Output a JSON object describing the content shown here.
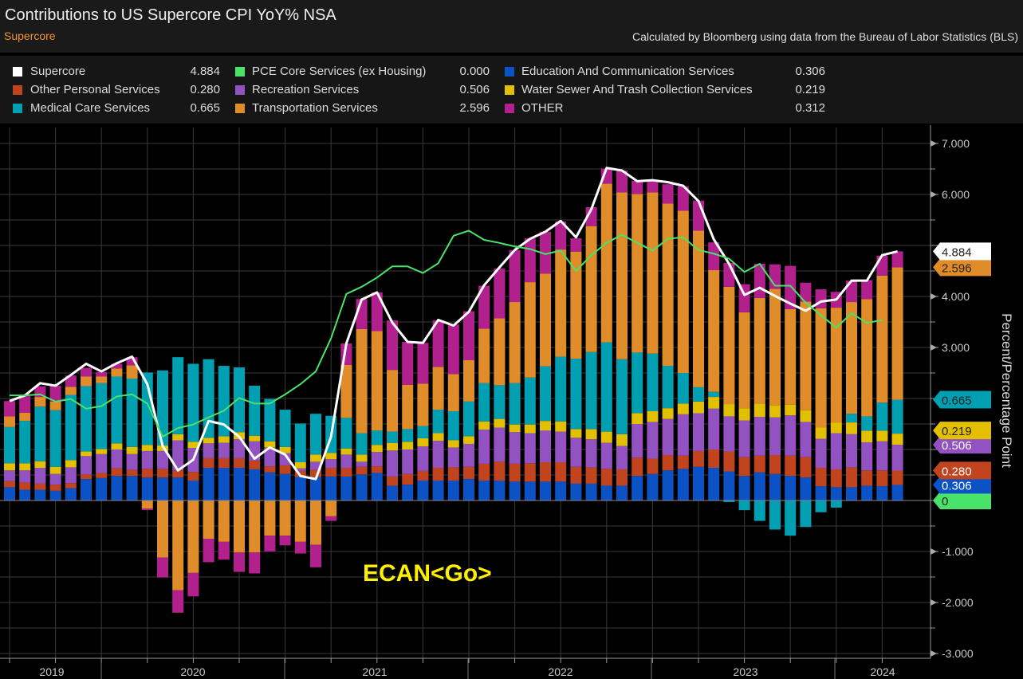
{
  "header": {
    "title": "Contributions to US Supercore CPI YoY% NSA",
    "subtitle": "Supercore",
    "source": "Calculated by Bloomberg using data from the Bureau of Labor Statistics (BLS)"
  },
  "legend": [
    {
      "name": "Supercore",
      "value": "4.884",
      "color": "#ffffff"
    },
    {
      "name": "Other Personal Services",
      "value": "0.280",
      "color": "#c2441e"
    },
    {
      "name": "Medical Care Services",
      "value": "0.665",
      "color": "#00a0b2"
    },
    {
      "name": "PCE Core Services (ex Housing)",
      "value": "0.000",
      "color": "#4ae36a"
    },
    {
      "name": "Recreation Services",
      "value": "0.506",
      "color": "#9352c2"
    },
    {
      "name": "Transportation Services",
      "value": "2.596",
      "color": "#e08c28"
    },
    {
      "name": "Education And Communication Services",
      "value": "0.306",
      "color": "#0a52c6"
    },
    {
      "name": "Water Sewer And Trash Collection Services",
      "value": "0.219",
      "color": "#e2c000"
    },
    {
      "name": "OTHER",
      "value": "0.312",
      "color": "#b2208e"
    }
  ],
  "watermark": "ECAN<Go>",
  "chart_data": {
    "type": "bar",
    "title": "Contributions to US Supercore CPI YoY% NSA",
    "ylabel": "Percent/Percentage Point",
    "ylim": [
      -3,
      7
    ],
    "yticks": [
      "7.000",
      "6.000",
      "4.000",
      "3.000",
      "-1.000",
      "-2.000",
      "-3.000"
    ],
    "xticks": [
      "2019",
      "2020",
      "2021",
      "2022",
      "2023",
      "2024"
    ],
    "grid": true,
    "stacked": true,
    "series": [
      {
        "name": "Education And Communication Services",
        "color": "#0a52c6",
        "tag": "0.306",
        "values": [
          0.26,
          0.21,
          0.21,
          0.19,
          0.24,
          0.42,
          0.44,
          0.48,
          0.48,
          0.45,
          0.45,
          0.45,
          0.39,
          0.64,
          0.64,
          0.64,
          0.61,
          0.55,
          0.52,
          0.46,
          0.46,
          0.47,
          0.47,
          0.51,
          0.54,
          0.29,
          0.31,
          0.39,
          0.39,
          0.39,
          0.42,
          0.39,
          0.39,
          0.37,
          0.37,
          0.37,
          0.37,
          0.33,
          0.33,
          0.29,
          0.29,
          0.48,
          0.52,
          0.59,
          0.62,
          0.66,
          0.64,
          0.57,
          0.48,
          0.55,
          0.52,
          0.48,
          0.45,
          0.28,
          0.26,
          0.26,
          0.29,
          0.28,
          0.306
        ]
      },
      {
        "name": "Other Personal Services",
        "color": "#c2441e",
        "tag": "0.280",
        "values": [
          0.12,
          0.14,
          0.12,
          0.12,
          0.1,
          0.09,
          0.1,
          0.15,
          0.12,
          0.17,
          0.17,
          0.14,
          0.17,
          0.19,
          0.19,
          0.19,
          0.17,
          0.12,
          0.17,
          0.12,
          0.14,
          0.17,
          0.17,
          0.15,
          0.13,
          0.18,
          0.21,
          0.19,
          0.25,
          0.26,
          0.24,
          0.33,
          0.37,
          0.35,
          0.36,
          0.38,
          0.38,
          0.33,
          0.32,
          0.33,
          0.32,
          0.36,
          0.3,
          0.3,
          0.26,
          0.31,
          0.36,
          0.39,
          0.37,
          0.33,
          0.37,
          0.4,
          0.4,
          0.36,
          0.35,
          0.39,
          0.3,
          0.31,
          0.28
        ]
      },
      {
        "name": "Recreation Services",
        "color": "#9352c2",
        "tag": "0.506",
        "values": [
          0.21,
          0.24,
          0.31,
          0.21,
          0.31,
          0.36,
          0.37,
          0.37,
          0.31,
          0.35,
          0.35,
          0.59,
          0.47,
          0.29,
          0.3,
          0.37,
          0.38,
          0.37,
          0.24,
          0.05,
          0.16,
          0.17,
          0.26,
          0.1,
          0.28,
          0.51,
          0.48,
          0.48,
          0.53,
          0.39,
          0.45,
          0.67,
          0.67,
          0.62,
          0.59,
          0.62,
          0.6,
          0.57,
          0.55,
          0.51,
          0.46,
          0.66,
          0.72,
          0.71,
          0.81,
          0.74,
          0.8,
          0.69,
          0.72,
          0.76,
          0.74,
          0.79,
          0.69,
          0.57,
          0.71,
          0.65,
          0.55,
          0.57,
          0.506
        ]
      },
      {
        "name": "Water Sewer And Trash Collection Services",
        "color": "#e2c000",
        "tag": "0.219",
        "values": [
          0.14,
          0.14,
          0.13,
          0.14,
          0.14,
          0.09,
          0.1,
          0.12,
          0.14,
          0.12,
          0.11,
          0.12,
          0.12,
          0.11,
          0.13,
          0.14,
          0.11,
          0.12,
          0.12,
          0.12,
          0.14,
          0.12,
          0.12,
          0.14,
          0.14,
          0.15,
          0.15,
          0.16,
          0.15,
          0.14,
          0.15,
          0.16,
          0.17,
          0.15,
          0.17,
          0.19,
          0.2,
          0.17,
          0.2,
          0.22,
          0.23,
          0.21,
          0.21,
          0.21,
          0.21,
          0.23,
          0.23,
          0.24,
          0.24,
          0.26,
          0.24,
          0.21,
          0.23,
          0.22,
          0.21,
          0.23,
          0.23,
          0.21,
          0.219
        ]
      },
      {
        "name": "Medical Care Services",
        "color": "#00a0b2",
        "tag": "0.665",
        "values": [
          0.71,
          0.83,
          1.07,
          1.11,
          1.28,
          1.28,
          1.29,
          1.31,
          1.34,
          1.42,
          1.47,
          1.51,
          1.53,
          1.54,
          1.38,
          1.27,
          0.98,
          0.83,
          0.73,
          0.76,
          0.8,
          0.73,
          0.6,
          0.42,
          0.28,
          0.22,
          0.25,
          0.24,
          0.46,
          0.57,
          0.68,
          0.75,
          0.66,
          0.81,
          0.92,
          1.07,
          1.27,
          1.38,
          1.51,
          1.75,
          1.47,
          1.19,
          1.13,
          0.83,
          0.6,
          0.28,
          0.1,
          -0.03,
          -0.19,
          -0.4,
          -0.57,
          -0.69,
          -0.52,
          -0.23,
          -0.14,
          0.17,
          0.28,
          0.55,
          0.665
        ]
      },
      {
        "name": "Transportation Services",
        "color": "#e08c28",
        "tag": "2.596",
        "values": [
          0.21,
          0.16,
          0.19,
          0.17,
          0.16,
          0.19,
          0.13,
          0.16,
          0.26,
          -0.16,
          -1.12,
          -1.76,
          -1.42,
          -0.75,
          -0.81,
          -1.02,
          -1.02,
          -0.69,
          -0.69,
          -0.81,
          -0.87,
          -0.31,
          1.04,
          2.04,
          1.95,
          1.21,
          0.87,
          0.83,
          0.84,
          0.73,
          0.81,
          1.07,
          1.31,
          1.59,
          1.87,
          1.82,
          2.1,
          2.1,
          2.47,
          3.11,
          3.27,
          3.11,
          3.16,
          3.18,
          3.18,
          3.07,
          2.39,
          2.3,
          1.88,
          2.07,
          2.28,
          1.87,
          2.13,
          2.34,
          2.25,
          2.19,
          2.3,
          2.49,
          2.596
        ]
      },
      {
        "name": "OTHER",
        "color": "#b2208e",
        "tag": "",
        "values": [
          0.3,
          0.33,
          0.21,
          0.31,
          0.22,
          0.17,
          0.09,
          0.09,
          0.16,
          -0.03,
          -0.39,
          -0.44,
          -0.46,
          -0.46,
          -0.35,
          -0.38,
          -0.41,
          -0.31,
          -0.19,
          -0.23,
          -0.44,
          -0.09,
          0.42,
          0.59,
          0.76,
          0.97,
          0.84,
          0.8,
          0.91,
          0.97,
          0.96,
          0.84,
          0.98,
          1.02,
          0.86,
          0.82,
          0.55,
          0.26,
          0.37,
          0.3,
          0.43,
          0.26,
          0.22,
          0.38,
          0.48,
          0.59,
          0.54,
          0.47,
          0.55,
          0.67,
          0.48,
          0.85,
          0.37,
          0.37,
          0.31,
          0.42,
          0.37,
          0.39,
          0.312
        ]
      }
    ],
    "lines": [
      {
        "name": "Supercore",
        "color": "#ffffff",
        "tag": "4.884",
        "values": [
          1.95,
          2.06,
          2.3,
          2.25,
          2.46,
          2.68,
          2.53,
          2.69,
          2.82,
          2.28,
          1.07,
          0.59,
          0.8,
          1.56,
          1.49,
          1.25,
          0.82,
          1.04,
          0.9,
          0.48,
          0.42,
          1.25,
          3.08,
          3.94,
          4.08,
          3.49,
          3.11,
          3.09,
          3.54,
          3.43,
          3.7,
          4.22,
          4.57,
          4.91,
          5.13,
          5.27,
          5.48,
          5.16,
          5.71,
          6.52,
          6.47,
          6.26,
          6.28,
          6.24,
          6.17,
          5.87,
          5.12,
          4.64,
          4.03,
          4.17,
          4.01,
          3.86,
          3.72,
          3.9,
          3.94,
          4.31,
          4.31,
          4.81,
          4.884
        ]
      },
      {
        "name": "PCE Core Services (ex Housing)",
        "color": "#4ae36a",
        "tag": "0",
        "values": [
          2.06,
          2.06,
          2.08,
          1.94,
          1.99,
          1.8,
          1.85,
          2.04,
          2.08,
          1.9,
          1.25,
          1.42,
          1.49,
          1.63,
          1.76,
          2.01,
          1.9,
          1.9,
          2.08,
          2.28,
          2.53,
          3.18,
          4.05,
          4.19,
          4.37,
          4.59,
          4.59,
          4.46,
          4.65,
          5.19,
          5.29,
          5.11,
          5.05,
          4.98,
          4.93,
          4.83,
          4.9,
          4.5,
          4.81,
          5.05,
          5.21,
          5.05,
          4.9,
          5.13,
          5.16,
          4.91,
          4.84,
          4.74,
          4.48,
          4.64,
          4.21,
          4.21,
          3.88,
          3.63,
          3.39,
          3.67,
          3.48,
          3.54,
          null
        ]
      }
    ]
  }
}
